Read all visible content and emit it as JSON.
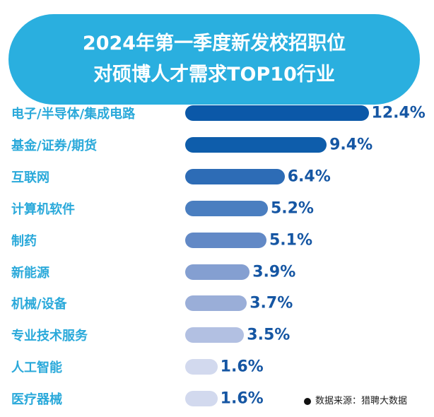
{
  "chart_data": {
    "type": "bar",
    "orientation": "horizontal",
    "title_lines": [
      "2024年第一季度新发校招职位",
      "对硕博人才需求TOP10行业"
    ],
    "categories": [
      "电子/半导体/集成电路",
      "基金/证券/期货",
      "互联网",
      "计算机软件",
      "制药",
      "新能源",
      "机械/设备",
      "专业技术服务",
      "人工智能",
      "医疗器械"
    ],
    "values": [
      12.4,
      9.4,
      6.4,
      5.2,
      5.1,
      3.9,
      3.7,
      3.5,
      1.6,
      1.6
    ],
    "value_labels": [
      "12.4%",
      "9.4%",
      "6.4%",
      "5.2%",
      "5.1%",
      "3.9%",
      "3.7%",
      "3.5%",
      "1.6%",
      "1.6%"
    ],
    "bar_colors": [
      "#0b58a8",
      "#0e5dab",
      "#2d6cb6",
      "#4a7ec0",
      "#6289c6",
      "#849fd1",
      "#9aaed8",
      "#b2c0e2",
      "#d2d9ee",
      "#d2d9ee"
    ],
    "grid": false,
    "legend": "none",
    "source": "数据来源：猎聘大数据"
  },
  "colors": {
    "title_bg": "#2aafdf",
    "label": "#2aa9da",
    "value": "#1556a3"
  }
}
